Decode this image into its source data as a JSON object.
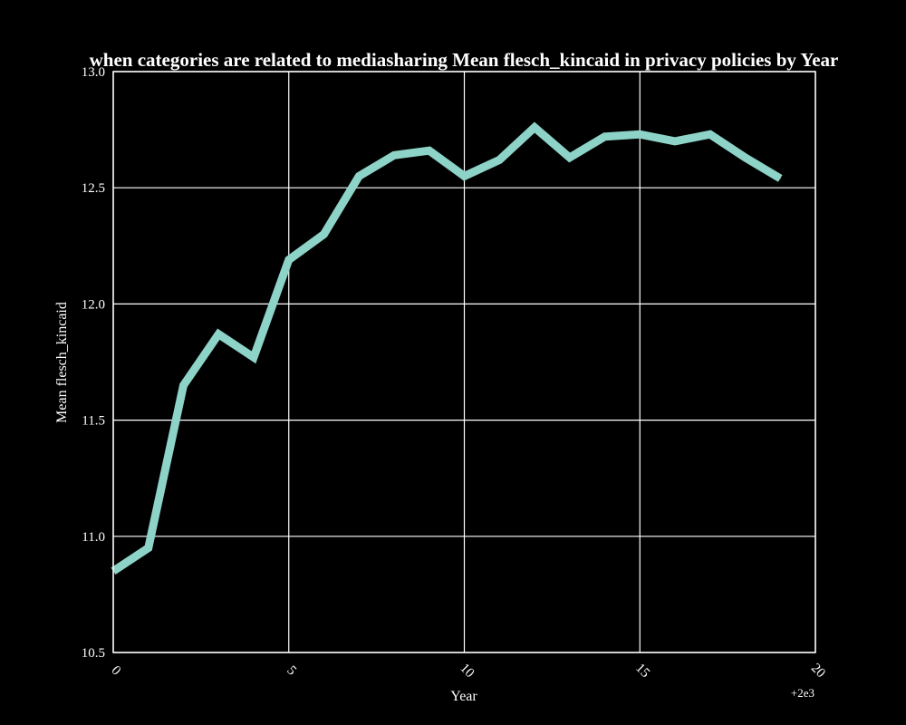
{
  "chart_data": {
    "type": "line",
    "title": "when categories are related to mediasharing Mean flesch_kincaid in privacy policies by Year",
    "xlabel": "Year",
    "ylabel": "Mean flesch_kincaid",
    "x_offset_label": "+2e3",
    "xlim": [
      0,
      20
    ],
    "ylim": [
      10.5,
      13.0
    ],
    "x_ticks": [
      "0",
      "5",
      "10",
      "15",
      "20"
    ],
    "y_ticks": [
      "10.5",
      "11.0",
      "11.5",
      "12.0",
      "12.5",
      "13.0"
    ],
    "grid": true,
    "line_color": "#8dd3c7",
    "background_color": "#000000",
    "series": [
      {
        "x": [
          0,
          1,
          2,
          3,
          4,
          5,
          6,
          7,
          8,
          9,
          10,
          11,
          12,
          13,
          14,
          15,
          16,
          17,
          18,
          19
        ],
        "values": [
          10.85,
          10.95,
          11.65,
          11.87,
          11.77,
          12.19,
          12.3,
          12.55,
          12.64,
          12.66,
          12.55,
          12.62,
          12.76,
          12.63,
          12.72,
          12.73,
          12.7,
          12.73,
          12.63,
          12.54
        ]
      }
    ]
  }
}
